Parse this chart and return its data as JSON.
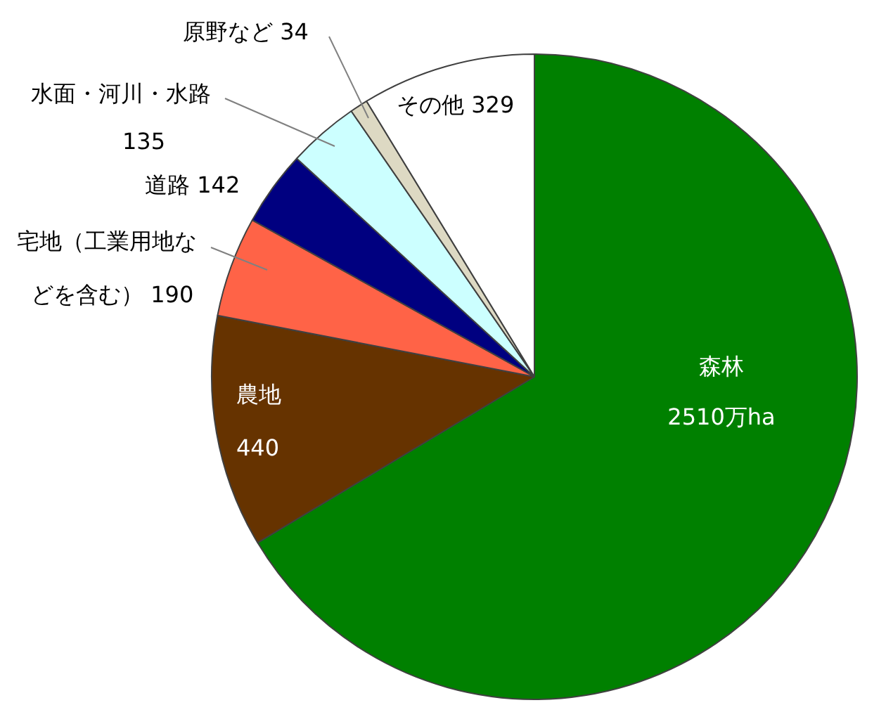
{
  "chart_data": {
    "type": "pie",
    "categories": [
      "森林",
      "農地",
      "宅地（工業用地などを含む）",
      "道路",
      "水面・河川・水路",
      "原野など",
      "その他"
    ],
    "values": [
      2510,
      440,
      190,
      142,
      135,
      34,
      329
    ],
    "colors": [
      "#008000",
      "#663300",
      "#ff6347",
      "#000080",
      "#ccffff",
      "#ddd9c3",
      "#ffffff"
    ],
    "value_labels": [
      "2510万ha",
      "440",
      "190",
      "142",
      "135",
      "34",
      "329"
    ],
    "legend": false
  }
}
